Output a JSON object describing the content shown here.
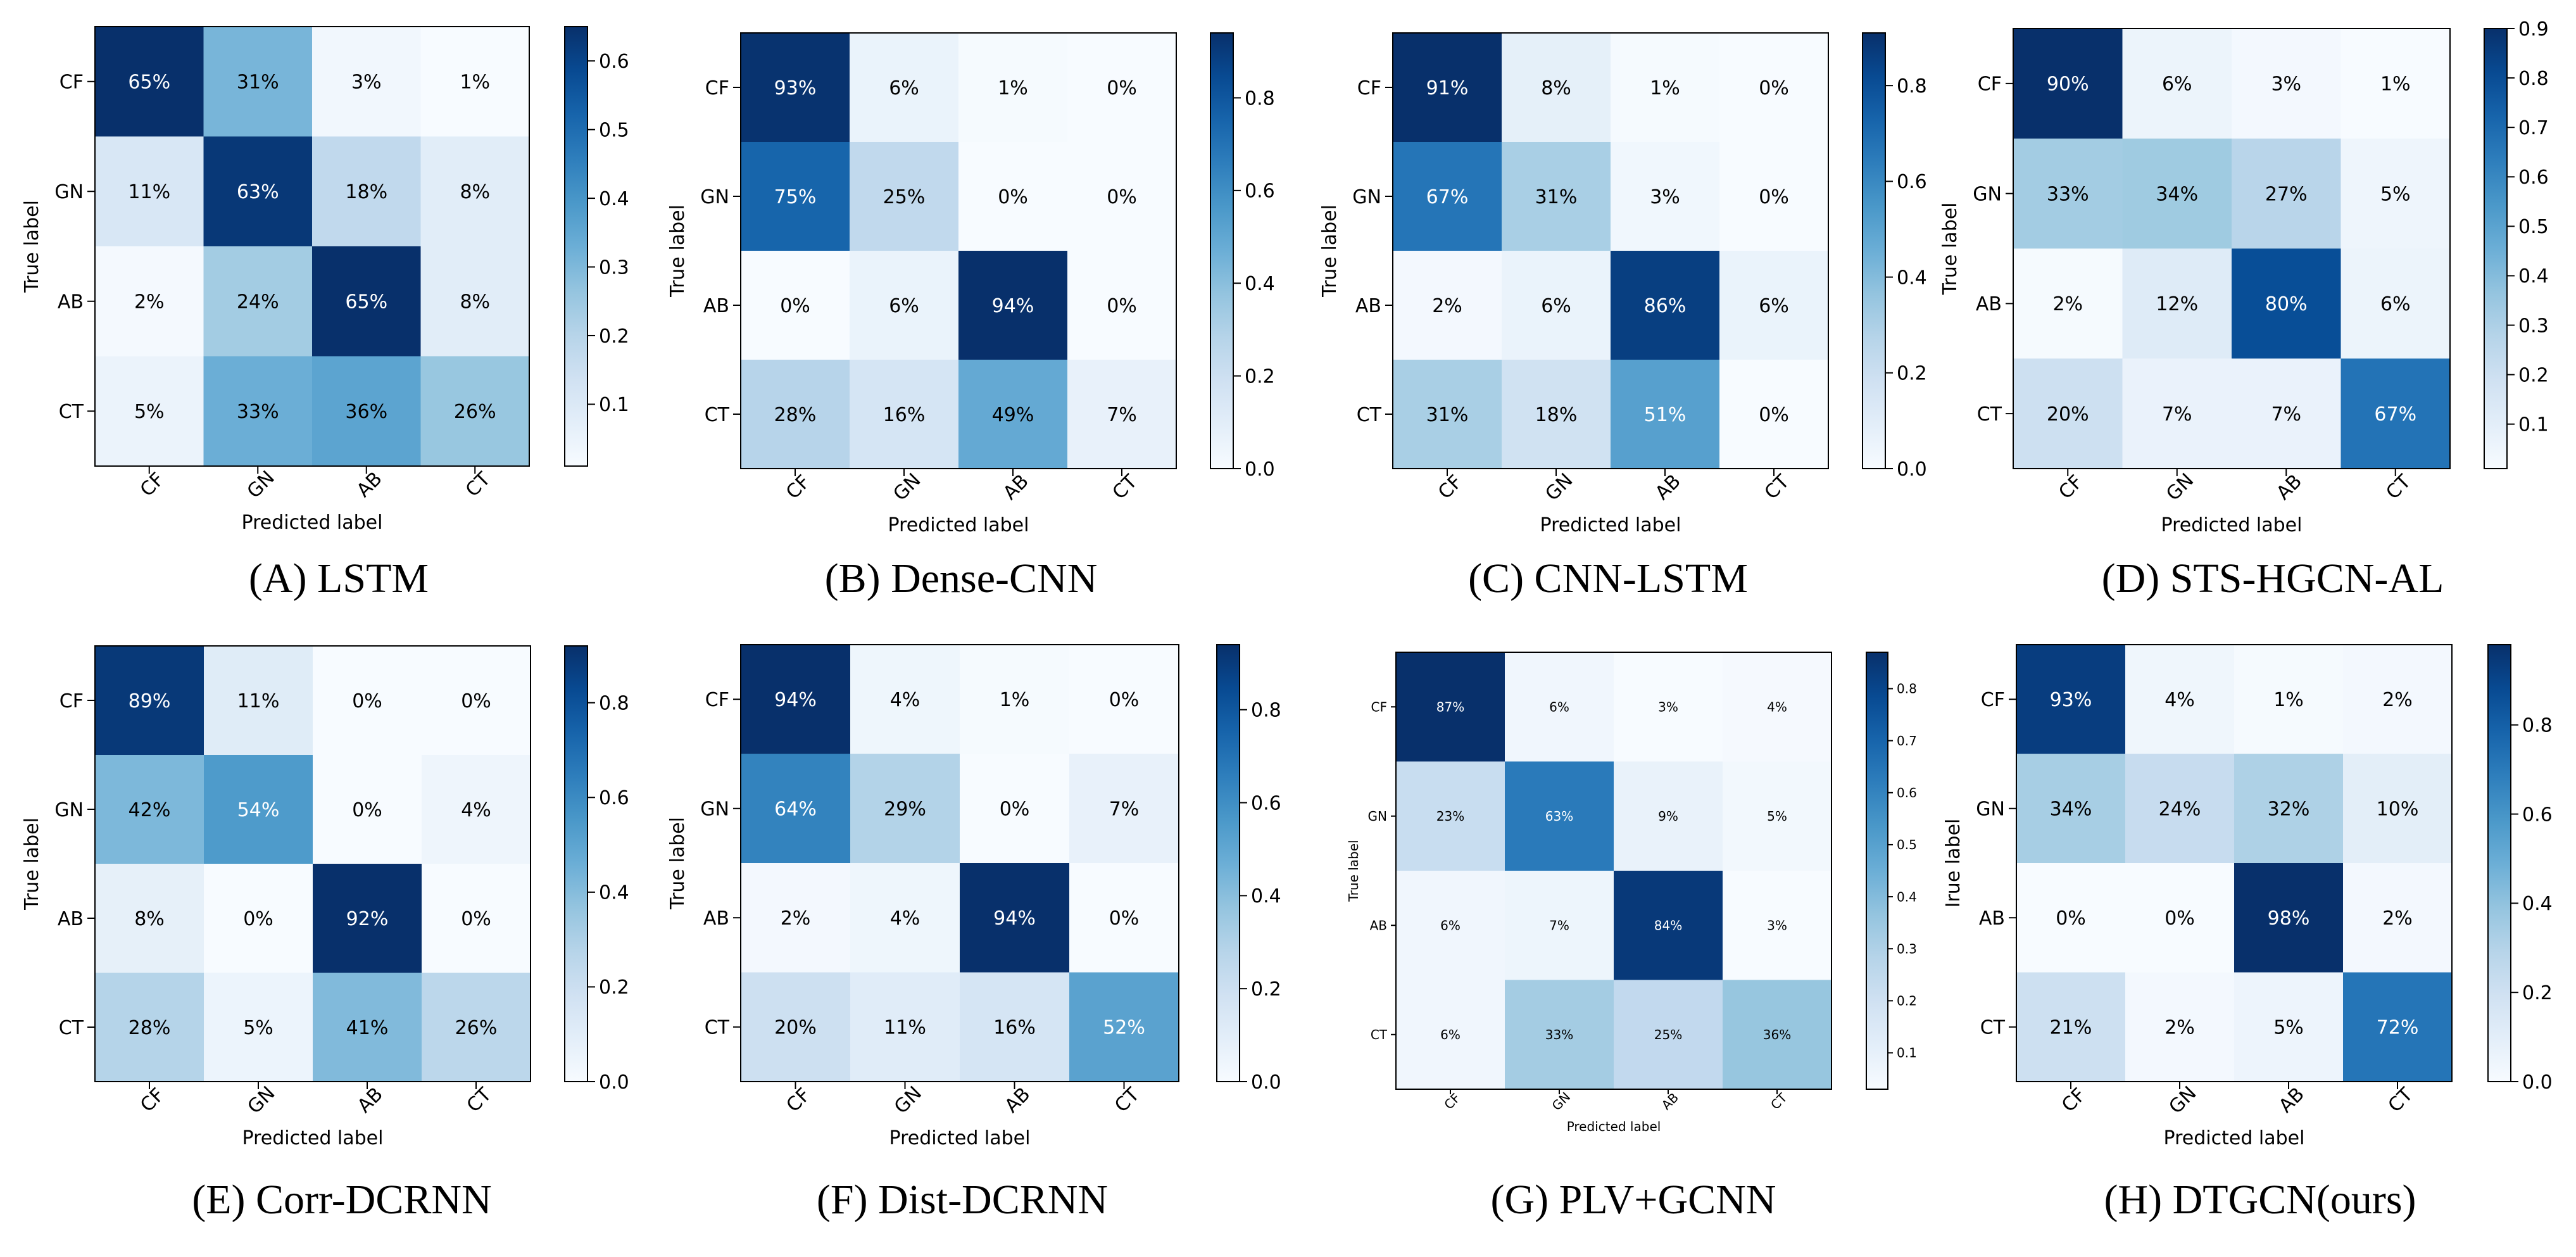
{
  "chart_data": [
    {
      "type": "heatmap",
      "caption": "(A) LSTM",
      "rows": [
        "CF",
        "GN",
        "AB",
        "CT"
      ],
      "cols": [
        "CF",
        "GN",
        "AB",
        "CT"
      ],
      "values": [
        [
          65,
          31,
          3,
          1
        ],
        [
          11,
          63,
          18,
          8
        ],
        [
          2,
          24,
          65,
          8
        ],
        [
          5,
          33,
          36,
          26
        ]
      ],
      "value_labels": [
        [
          "65%",
          "31%",
          "3%",
          "1%"
        ],
        [
          "11%",
          "63%",
          "18%",
          "8%"
        ],
        [
          "2%",
          "24%",
          "65%",
          "8%"
        ],
        [
          "5%",
          "33%",
          "36%",
          "26%"
        ]
      ],
      "xlabel": "Predicted label",
      "ylabel": "True label",
      "colorbar": {
        "range": [
          0.01,
          0.65
        ],
        "ticks": [
          0.1,
          0.2,
          0.3,
          0.4,
          0.5,
          0.6
        ],
        "tick_labels": [
          "0.1",
          "0.2",
          "0.3",
          "0.4",
          "0.5",
          "0.6"
        ]
      }
    },
    {
      "type": "heatmap",
      "caption": "(B) Dense-CNN",
      "rows": [
        "CF",
        "GN",
        "AB",
        "CT"
      ],
      "cols": [
        "CF",
        "GN",
        "AB",
        "CT"
      ],
      "values": [
        [
          93,
          6,
          1,
          0
        ],
        [
          75,
          25,
          0,
          0
        ],
        [
          0,
          6,
          94,
          0
        ],
        [
          28,
          16,
          49,
          7
        ]
      ],
      "value_labels": [
        [
          "93%",
          "6%",
          "1%",
          "0%"
        ],
        [
          "75%",
          "25%",
          "0%",
          "0%"
        ],
        [
          "0%",
          "6%",
          "94%",
          "0%"
        ],
        [
          "28%",
          "16%",
          "49%",
          "7%"
        ]
      ],
      "xlabel": "Predicted label",
      "ylabel": "True label",
      "colorbar": {
        "range": [
          0,
          0.94
        ],
        "ticks": [
          0,
          0.2,
          0.4,
          0.6,
          0.8
        ],
        "tick_labels": [
          "0.0",
          "0.2",
          "0.4",
          "0.6",
          "0.8"
        ]
      }
    },
    {
      "type": "heatmap",
      "caption": "(C) CNN-LSTM",
      "rows": [
        "CF",
        "GN",
        "AB",
        "CT"
      ],
      "cols": [
        "CF",
        "GN",
        "AB",
        "CT"
      ],
      "values": [
        [
          91,
          8,
          1,
          0
        ],
        [
          67,
          31,
          3,
          0
        ],
        [
          2,
          6,
          86,
          6
        ],
        [
          31,
          18,
          51,
          0
        ]
      ],
      "value_labels": [
        [
          "91%",
          "8%",
          "1%",
          "0%"
        ],
        [
          "67%",
          "31%",
          "3%",
          "0%"
        ],
        [
          "2%",
          "6%",
          "86%",
          "6%"
        ],
        [
          "31%",
          "18%",
          "51%",
          "0%"
        ]
      ],
      "xlabel": "Predicted label",
      "ylabel": "True label",
      "colorbar": {
        "range": [
          0,
          0.91
        ],
        "ticks": [
          0,
          0.2,
          0.4,
          0.6,
          0.8
        ],
        "tick_labels": [
          "0.0",
          "0.2",
          "0.4",
          "0.6",
          "0.8"
        ]
      }
    },
    {
      "type": "heatmap",
      "caption": "(D) STS-HGCN-AL",
      "rows": [
        "CF",
        "GN",
        "AB",
        "CT"
      ],
      "cols": [
        "CF",
        "GN",
        "AB",
        "CT"
      ],
      "values": [
        [
          90,
          6,
          3,
          1
        ],
        [
          33,
          34,
          27,
          5
        ],
        [
          2,
          12,
          80,
          6
        ],
        [
          20,
          7,
          7,
          67
        ]
      ],
      "value_labels": [
        [
          "90%",
          "6%",
          "3%",
          "1%"
        ],
        [
          "33%",
          "34%",
          "27%",
          "5%"
        ],
        [
          "2%",
          "12%",
          "80%",
          "6%"
        ],
        [
          "20%",
          "7%",
          "7%",
          "67%"
        ]
      ],
      "xlabel": "Predicted label",
      "ylabel": "True label",
      "colorbar": {
        "range": [
          0.01,
          0.9
        ],
        "ticks": [
          0.1,
          0.2,
          0.3,
          0.4,
          0.5,
          0.6,
          0.7,
          0.8,
          0.9
        ],
        "tick_labels": [
          "0.1",
          "0.2",
          "0.3",
          "0.4",
          "0.5",
          "0.6",
          "0.7",
          "0.8",
          "0.9"
        ]
      }
    },
    {
      "type": "heatmap",
      "caption": "(E) Corr-DCRNN",
      "rows": [
        "CF",
        "GN",
        "AB",
        "CT"
      ],
      "cols": [
        "CF",
        "GN",
        "AB",
        "CT"
      ],
      "values": [
        [
          89,
          11,
          0,
          0
        ],
        [
          42,
          54,
          0,
          4
        ],
        [
          8,
          0,
          92,
          0
        ],
        [
          28,
          5,
          41,
          26
        ]
      ],
      "value_labels": [
        [
          "89%",
          "11%",
          "0%",
          "0%"
        ],
        [
          "42%",
          "54%",
          "0%",
          "4%"
        ],
        [
          "8%",
          "0%",
          "92%",
          "0%"
        ],
        [
          "28%",
          "5%",
          "41%",
          "26%"
        ]
      ],
      "xlabel": "Predicted label",
      "ylabel": "True label",
      "colorbar": {
        "range": [
          0,
          0.92
        ],
        "ticks": [
          0,
          0.2,
          0.4,
          0.6,
          0.8
        ],
        "tick_labels": [
          "0.0",
          "0.2",
          "0.4",
          "0.6",
          "0.8"
        ]
      }
    },
    {
      "type": "heatmap",
      "caption": "(F) Dist-DCRNN",
      "rows": [
        "CF",
        "GN",
        "AB",
        "CT"
      ],
      "cols": [
        "CF",
        "GN",
        "AB",
        "CT"
      ],
      "values": [
        [
          94,
          4,
          1,
          0
        ],
        [
          64,
          29,
          0,
          7
        ],
        [
          2,
          4,
          94,
          0
        ],
        [
          20,
          11,
          16,
          52
        ]
      ],
      "value_labels": [
        [
          "94%",
          "4%",
          "1%",
          "0%"
        ],
        [
          "64%",
          "29%",
          "0%",
          "7%"
        ],
        [
          "2%",
          "4%",
          "94%",
          "0%"
        ],
        [
          "20%",
          "11%",
          "16%",
          "52%"
        ]
      ],
      "xlabel": "Predicted label",
      "ylabel": "True label",
      "colorbar": {
        "range": [
          0,
          0.94
        ],
        "ticks": [
          0,
          0.2,
          0.4,
          0.6,
          0.8
        ],
        "tick_labels": [
          "0.0",
          "0.2",
          "0.4",
          "0.6",
          "0.8"
        ]
      }
    },
    {
      "type": "heatmap",
      "caption": "(G) PLV+GCNN",
      "rows": [
        "CF",
        "GN",
        "AB",
        "CT"
      ],
      "cols": [
        "CF",
        "GN",
        "AB",
        "CT"
      ],
      "values": [
        [
          87,
          6,
          3,
          4
        ],
        [
          23,
          63,
          9,
          5
        ],
        [
          6,
          7,
          84,
          3
        ],
        [
          6,
          33,
          25,
          36
        ]
      ],
      "value_labels": [
        [
          "87%",
          "6%",
          "3%",
          "4%"
        ],
        [
          "23%",
          "63%",
          "9%",
          "5%"
        ],
        [
          "6%",
          "7%",
          "84%",
          "3%"
        ],
        [
          "6%",
          "33%",
          "25%",
          "36%"
        ]
      ],
      "xlabel": "Predicted label",
      "ylabel": "True label",
      "colorbar": {
        "range": [
          0.03,
          0.87
        ],
        "ticks": [
          0.1,
          0.2,
          0.3,
          0.4,
          0.5,
          0.6,
          0.7,
          0.8
        ],
        "tick_labels": [
          "0.1",
          "0.2",
          "0.3",
          "0.4",
          "0.5",
          "0.6",
          "0.7",
          "0.8"
        ]
      }
    },
    {
      "type": "heatmap",
      "caption": "(H) DTGCN(ours)",
      "rows": [
        "CF",
        "GN",
        "AB",
        "CT"
      ],
      "cols": [
        "CF",
        "GN",
        "AB",
        "CT"
      ],
      "values": [
        [
          93,
          4,
          1,
          2
        ],
        [
          34,
          24,
          32,
          10
        ],
        [
          0,
          0,
          98,
          2
        ],
        [
          21,
          2,
          5,
          72
        ]
      ],
      "value_labels": [
        [
          "93%",
          "4%",
          "1%",
          "2%"
        ],
        [
          "34%",
          "24%",
          "32%",
          "10%"
        ],
        [
          "0%",
          "0%",
          "98%",
          "2%"
        ],
        [
          "21%",
          "2%",
          "5%",
          "72%"
        ]
      ],
      "xlabel": "Predicted label",
      "ylabel": "Irue label",
      "colorbar": {
        "range": [
          0,
          0.98
        ],
        "ticks": [
          0,
          0.2,
          0.4,
          0.6,
          0.8
        ],
        "tick_labels": [
          "0.0",
          "0.2",
          "0.4",
          "0.6",
          "0.8"
        ]
      }
    }
  ]
}
